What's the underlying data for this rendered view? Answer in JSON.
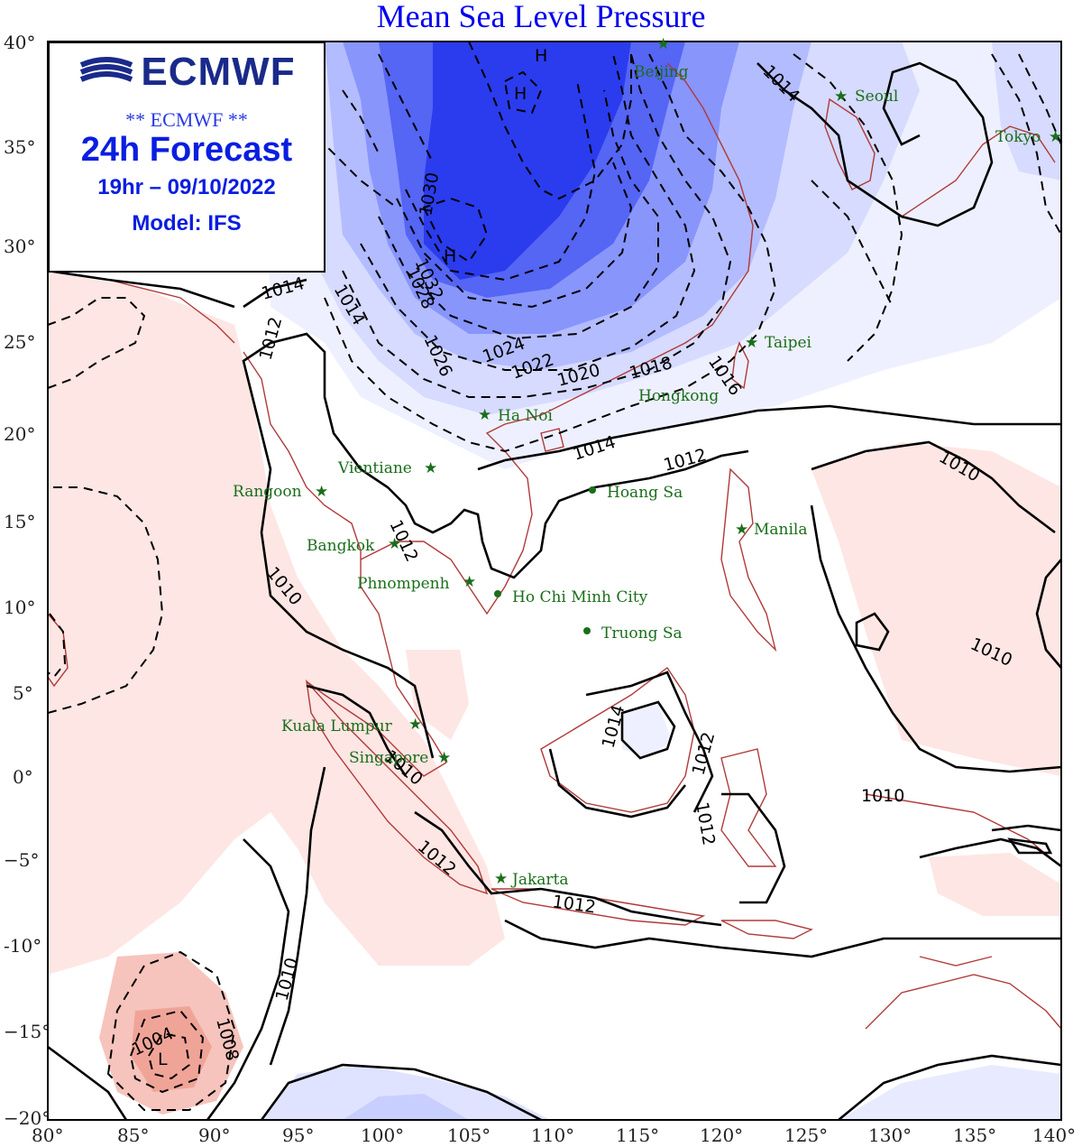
{
  "title": "Mean Sea Level Pressure",
  "info_box": {
    "logo_text": "ECMWF",
    "stars_line": "** ECMWF **",
    "forecast": "24h Forecast",
    "datetime": "19hr – 09/10/2022",
    "model": "Model: IFS"
  },
  "axes": {
    "lon_ticks": [
      "80°",
      "85°",
      "90°",
      "95°",
      "100°",
      "105°",
      "110°",
      "115°",
      "120°",
      "125°",
      "130°",
      "135°",
      "140°"
    ],
    "lat_ticks": [
      "40°",
      "35°",
      "30°",
      "25°",
      "20°",
      "15°",
      "10°",
      "5°",
      "0°",
      "−5°",
      "-10°",
      "−15°",
      "−20°"
    ]
  },
  "cities": [
    {
      "name": "Beijing",
      "lon": 116.4,
      "lat": 39.9
    },
    {
      "name": "Seoul",
      "lon": 127.0,
      "lat": 37.5
    },
    {
      "name": "Tokyo",
      "lon": 139.7,
      "lat": 35.7
    },
    {
      "name": "Taipei",
      "lon": 121.5,
      "lat": 25.0
    },
    {
      "name": "Hongkong",
      "lon": 114.2,
      "lat": 22.3
    },
    {
      "name": "Ha Noi",
      "lon": 105.8,
      "lat": 21.0
    },
    {
      "name": "Vientiane",
      "lon": 102.6,
      "lat": 18.0
    },
    {
      "name": "Rangoon",
      "lon": 96.2,
      "lat": 16.8
    },
    {
      "name": "Hoang Sa",
      "lon": 112.3,
      "lat": 16.5
    },
    {
      "name": "Manila",
      "lon": 121.0,
      "lat": 14.6
    },
    {
      "name": "Bangkok",
      "lon": 100.5,
      "lat": 13.7
    },
    {
      "name": "Phnompenh",
      "lon": 104.9,
      "lat": 11.6
    },
    {
      "name": "Ho Chi Minh City",
      "lon": 106.7,
      "lat": 10.8
    },
    {
      "name": "Truong Sa",
      "lon": 111.9,
      "lat": 8.6
    },
    {
      "name": "Kuala Lumpur",
      "lon": 101.7,
      "lat": 3.1
    },
    {
      "name": "Singapore",
      "lon": 103.8,
      "lat": 1.3
    },
    {
      "name": "Jakarta",
      "lon": 106.8,
      "lat": -6.2
    }
  ],
  "contour_labels": [
    "1004",
    "1008",
    "1010",
    "1012",
    "1014",
    "1016",
    "1018",
    "1020",
    "1022",
    "1024",
    "1026",
    "1028",
    "1030",
    "1032"
  ],
  "pressure_centers": [
    {
      "label": "H",
      "lon": 108.8,
      "lat": 39.4
    },
    {
      "label": "H",
      "lon": 107.5,
      "lat": 37.3
    },
    {
      "label": "H",
      "lon": 104.1,
      "lat": 29.8
    },
    {
      "label": "L",
      "lon": 87.3,
      "lat": -16.2
    }
  ],
  "colors": {
    "high": "#1a2ee8",
    "low": "#f2b8b0",
    "coast": "#b03a3a",
    "city": "#1a6e1a",
    "title": "#0000ee"
  }
}
